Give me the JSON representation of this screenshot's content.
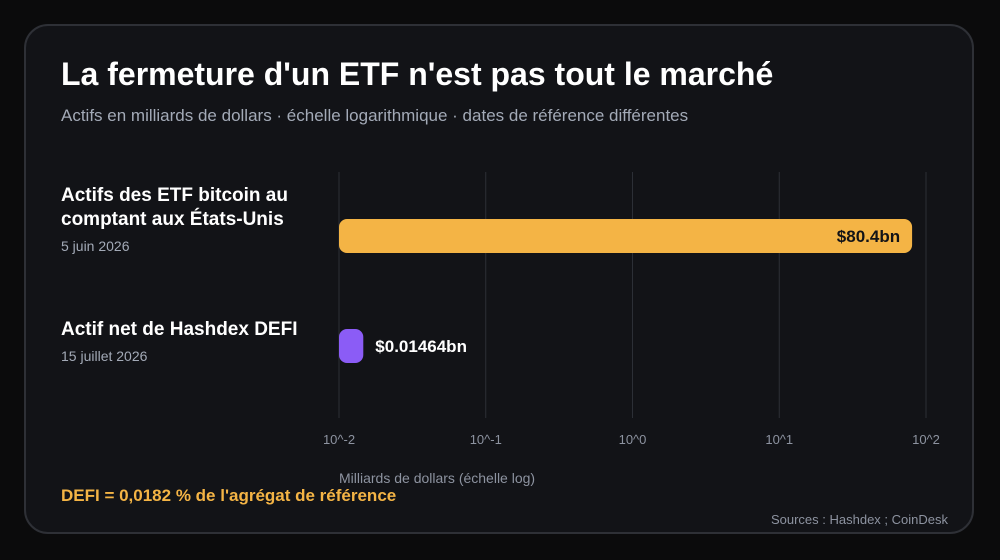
{
  "header": {
    "title": "La fermeture d'un ETF n'est pas tout le marché",
    "subtitle": "Actifs en milliards de dollars · échelle logarithmique · dates de référence différentes"
  },
  "chart_data": {
    "type": "bar",
    "orientation": "horizontal",
    "x_scale": "log",
    "xlim": [
      0.01,
      100
    ],
    "x_ticks": [
      0.01,
      0.1,
      1,
      10,
      100
    ],
    "x_tick_labels": [
      "10^-2",
      "10^-1",
      "10^0",
      "10^1",
      "10^2"
    ],
    "xlabel": "Milliards de dollars (échelle log)",
    "grid": true,
    "categories": [
      {
        "label": "Actifs des ETF bitcoin au comptant aux États-Unis",
        "date": "5 juin 2026"
      },
      {
        "label": "Actif net de Hashdex DEFI",
        "date": "15 juillet 2026"
      }
    ],
    "values": [
      80.4,
      0.01464
    ],
    "value_labels": [
      "$80.4bn",
      "$0.01464bn"
    ],
    "colors": [
      "#f4b445",
      "#8b5cf6"
    ]
  },
  "callout": "DEFI = 0,0182 % de l'agrégat de référence",
  "source": "Sources : Hashdex ; CoinDesk",
  "colors": {
    "background": "#0b0b0c",
    "card": "#121317",
    "accent_gold": "#f4b445",
    "accent_purple": "#8b5cf6",
    "muted_text": "#a3aab7"
  }
}
